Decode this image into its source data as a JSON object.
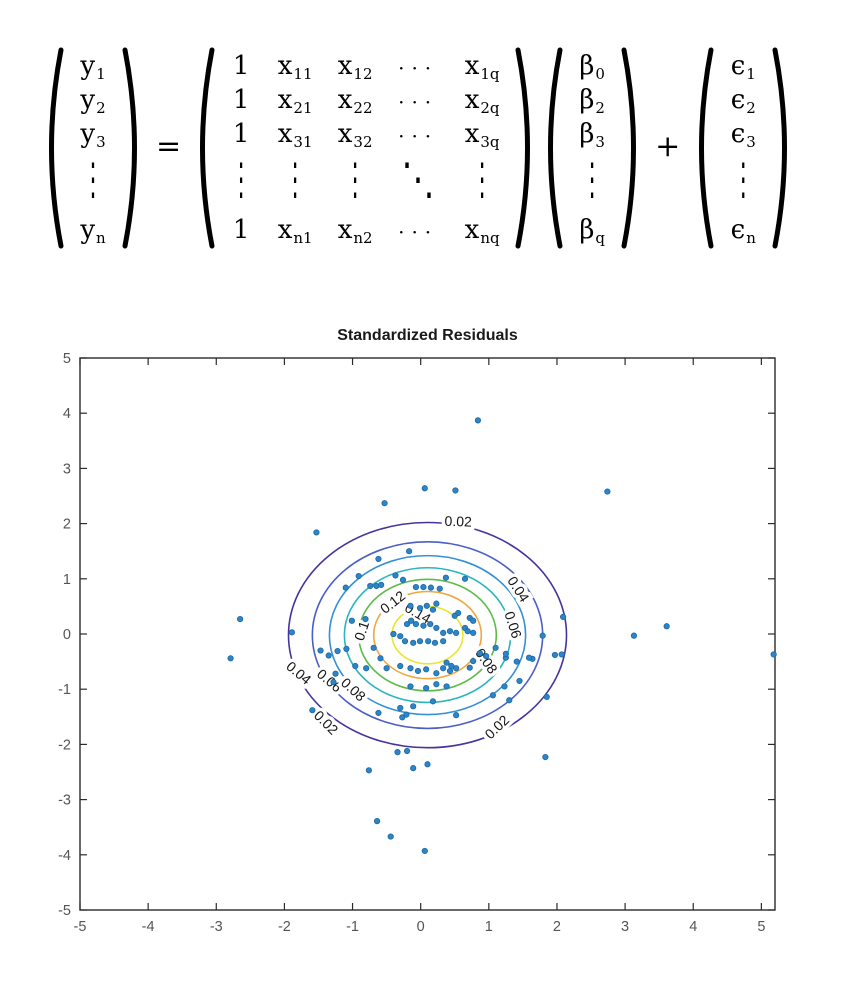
{
  "equation": {
    "y_vector": [
      "y|1",
      "y|2",
      "y|3",
      "⋮",
      "y|n"
    ],
    "equals_sign": "=",
    "design_matrix": [
      [
        "1",
        "x|11",
        "x|12",
        "···",
        "x|1q"
      ],
      [
        "1",
        "x|21",
        "x|22",
        "···",
        "x|2q"
      ],
      [
        "1",
        "x|31",
        "x|32",
        "···",
        "x|3q"
      ],
      [
        "⋮",
        "⋮",
        "⋮",
        "⋱",
        "⋮"
      ],
      [
        "1",
        "x|n1",
        "x|n2",
        "···",
        "x|nq"
      ]
    ],
    "beta_vector": [
      "β|0",
      "β|2",
      "β|3",
      "⋮",
      "β|q"
    ],
    "plus_sign": "+",
    "epsilon_vector": [
      "ϵ|1",
      "ϵ|2",
      "ϵ|3",
      "⋮",
      "ϵ|n"
    ]
  },
  "chart_data": {
    "type": "scatter",
    "title": "Standardized Residuals",
    "xlabel": "",
    "ylabel": "",
    "xlim": [
      -5,
      5.2
    ],
    "ylim": [
      -5,
      5
    ],
    "xticks": [
      -5,
      -4,
      -3,
      -2,
      -1,
      0,
      1,
      2,
      3,
      4,
      5
    ],
    "yticks": [
      -5,
      -4,
      -3,
      -2,
      -1,
      0,
      1,
      2,
      3,
      4,
      5
    ],
    "grid": false,
    "axes_color": "#2b2b2b",
    "tick_label_color": "#555555",
    "marker_color": "#2e84c6",
    "marker_edge_color": "#1a6aa5",
    "points": [
      [
        0.84,
        3.87
      ],
      [
        2.74,
        2.58
      ],
      [
        0.06,
        2.64
      ],
      [
        0.51,
        2.6
      ],
      [
        -0.53,
        2.37
      ],
      [
        -1.53,
        1.84
      ],
      [
        -0.17,
        1.5
      ],
      [
        -0.62,
        1.36
      ],
      [
        2.09,
        0.31
      ],
      [
        3.13,
        -0.03
      ],
      [
        3.61,
        0.14
      ],
      [
        5.18,
        -0.37
      ],
      [
        -2.65,
        0.27
      ],
      [
        -2.79,
        -0.44
      ],
      [
        -1.89,
        0.03
      ],
      [
        1.79,
        -0.03
      ],
      [
        1.97,
        -0.38
      ],
      [
        2.07,
        -0.37
      ],
      [
        1.64,
        -0.45
      ],
      [
        1.85,
        -1.14
      ],
      [
        1.83,
        -2.23
      ],
      [
        1.06,
        -1.11
      ],
      [
        1.3,
        -1.2
      ],
      [
        -1.59,
        -1.38
      ],
      [
        -1.35,
        -0.39
      ],
      [
        -1.47,
        -0.3
      ],
      [
        -1.25,
        -0.72
      ],
      [
        -1.28,
        -0.87
      ],
      [
        -0.76,
        -2.47
      ],
      [
        -0.34,
        -2.14
      ],
      [
        -0.2,
        -2.12
      ],
      [
        -0.11,
        -2.43
      ],
      [
        0.1,
        -2.36
      ],
      [
        -0.64,
        -3.39
      ],
      [
        -0.44,
        -3.67
      ],
      [
        0.06,
        -3.93
      ],
      [
        -0.62,
        -1.43
      ],
      [
        -0.3,
        -1.34
      ],
      [
        -0.11,
        -1.31
      ],
      [
        -0.27,
        -1.51
      ],
      [
        -0.21,
        -1.46
      ],
      [
        0.52,
        -1.47
      ],
      [
        0.18,
        -1.22
      ],
      [
        -0.91,
        1.05
      ],
      [
        -1.1,
        0.84
      ],
      [
        -0.74,
        0.87
      ],
      [
        -0.65,
        0.87
      ],
      [
        -0.58,
        0.89
      ],
      [
        -0.37,
        1.06
      ],
      [
        -0.26,
        0.98
      ],
      [
        -0.07,
        0.85
      ],
      [
        0.04,
        0.85
      ],
      [
        0.15,
        0.84
      ],
      [
        0.28,
        0.82
      ],
      [
        0.37,
        1.02
      ],
      [
        0.65,
        1.0
      ],
      [
        0.18,
        0.44
      ],
      [
        0.23,
        0.55
      ],
      [
        0.09,
        0.51
      ],
      [
        -0.01,
        0.47
      ],
      [
        -0.15,
        0.51
      ],
      [
        0.55,
        0.38
      ],
      [
        0.5,
        0.33
      ],
      [
        0.72,
        0.29
      ],
      [
        0.77,
        0.24
      ],
      [
        -1.01,
        0.24
      ],
      [
        -0.81,
        0.27
      ],
      [
        -0.2,
        0.18
      ],
      [
        -0.14,
        0.24
      ],
      [
        -0.07,
        0.18
      ],
      [
        0.04,
        0.15
      ],
      [
        0.14,
        0.18
      ],
      [
        0.23,
        0.11
      ],
      [
        0.33,
        0.02
      ],
      [
        0.43,
        0.05
      ],
      [
        0.52,
        0.02
      ],
      [
        0.65,
        0.11
      ],
      [
        0.77,
        0.02
      ],
      [
        0.69,
        0.05
      ],
      [
        -0.4,
        0.0
      ],
      [
        -0.3,
        -0.04
      ],
      [
        -0.23,
        -0.13
      ],
      [
        -0.11,
        -0.16
      ],
      [
        -0.01,
        -0.13
      ],
      [
        0.11,
        -0.13
      ],
      [
        0.21,
        -0.16
      ],
      [
        0.33,
        -0.13
      ],
      [
        -0.69,
        -0.25
      ],
      [
        -0.59,
        -0.44
      ],
      [
        -1.09,
        -0.27
      ],
      [
        -1.22,
        -0.31
      ],
      [
        -0.96,
        -0.58
      ],
      [
        -0.8,
        -0.62
      ],
      [
        -0.5,
        -0.62
      ],
      [
        -0.3,
        -0.58
      ],
      [
        -0.15,
        -0.62
      ],
      [
        -0.04,
        -0.67
      ],
      [
        0.08,
        -0.64
      ],
      [
        0.23,
        -0.71
      ],
      [
        0.33,
        -0.62
      ],
      [
        0.43,
        -0.67
      ],
      [
        0.52,
        -0.62
      ],
      [
        0.38,
        -0.52
      ],
      [
        0.45,
        -0.58
      ],
      [
        0.72,
        -0.61
      ],
      [
        0.96,
        -0.4
      ],
      [
        1.25,
        -0.43
      ],
      [
        1.41,
        -0.5
      ],
      [
        1.59,
        -0.43
      ],
      [
        0.77,
        -0.49
      ],
      [
        0.87,
        -0.35
      ],
      [
        1.1,
        -0.25
      ],
      [
        1.25,
        -0.36
      ],
      [
        0.23,
        -0.91
      ],
      [
        0.38,
        -0.95
      ],
      [
        0.08,
        -0.98
      ],
      [
        -0.15,
        -0.95
      ],
      [
        1.23,
        -0.95
      ],
      [
        1.45,
        -0.85
      ]
    ],
    "contours": {
      "center": [
        0.1,
        -0.02
      ],
      "levels": [
        {
          "level": 0.02,
          "radius": 2.04,
          "color": "#44349e"
        },
        {
          "level": 0.04,
          "radius": 1.69,
          "color": "#4a5ec6"
        },
        {
          "level": 0.06,
          "radius": 1.44,
          "color": "#3590d8"
        },
        {
          "level": 0.08,
          "radius": 1.22,
          "color": "#28b5bb"
        },
        {
          "level": 0.1,
          "radius": 1.01,
          "color": "#5cbb4a"
        },
        {
          "level": 0.12,
          "radius": 0.79,
          "color": "#f0a73f"
        },
        {
          "level": 0.14,
          "radius": 0.52,
          "color": "#ece52e"
        }
      ],
      "labels": [
        {
          "text": "0.02",
          "x": 0.55,
          "y": 2.02,
          "rot": 2
        },
        {
          "text": "0.02",
          "x": -1.4,
          "y": -1.62,
          "rot": 45
        },
        {
          "text": "0.02",
          "x": 1.13,
          "y": -1.7,
          "rot": -44
        },
        {
          "text": "0.04",
          "x": 1.42,
          "y": 0.8,
          "rot": 57
        },
        {
          "text": "0.04",
          "x": -1.8,
          "y": -0.72,
          "rot": 40
        },
        {
          "text": "0.06",
          "x": 1.34,
          "y": 0.16,
          "rot": 72
        },
        {
          "text": "0.06",
          "x": -1.35,
          "y": -0.86,
          "rot": 40
        },
        {
          "text": "0.08",
          "x": 0.95,
          "y": -0.5,
          "rot": 55
        },
        {
          "text": "0.08",
          "x": -1.0,
          "y": -1.02,
          "rot": 42
        },
        {
          "text": "0.1",
          "x": -0.85,
          "y": 0.05,
          "rot": -72
        },
        {
          "text": "0.12",
          "x": -0.4,
          "y": 0.56,
          "rot": -38
        },
        {
          "text": "0.14",
          "x": -0.05,
          "y": 0.36,
          "rot": 30
        }
      ]
    }
  }
}
